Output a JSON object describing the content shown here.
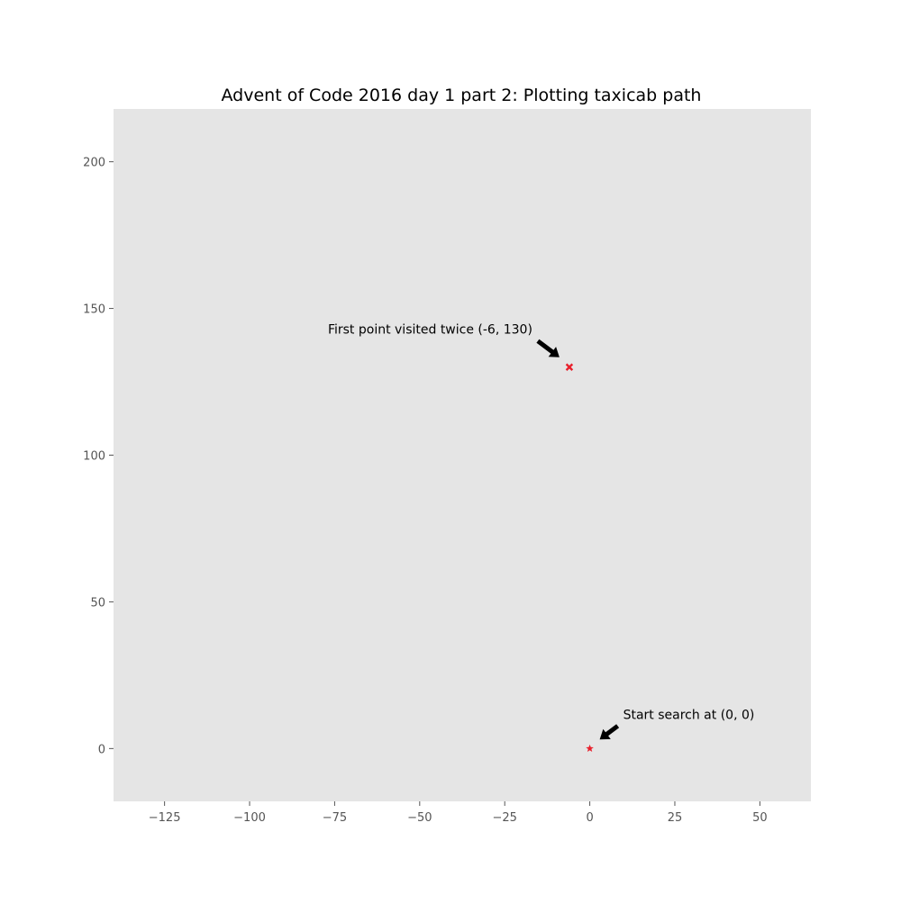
{
  "chart_data": {
    "type": "scatter",
    "title": "Advent of Code 2016 day 1 part 2: Plotting taxicab path",
    "xlabel": "",
    "ylabel": "",
    "xlim": [
      -140,
      65
    ],
    "ylim": [
      -18,
      218
    ],
    "grid": false,
    "x_ticks": [
      -125,
      -100,
      -75,
      -50,
      -25,
      0,
      25,
      50
    ],
    "x_tick_labels": [
      "−125",
      "−100",
      "−75",
      "−50",
      "−25",
      "0",
      "25",
      "50"
    ],
    "y_ticks": [
      0,
      50,
      100,
      150,
      200
    ],
    "y_tick_labels": [
      "0",
      "50",
      "100",
      "150",
      "200"
    ],
    "colors": {
      "plot_background": "#e5e5e5",
      "figure_background": "#ffffff",
      "marker": "#e8202c",
      "tick": "#555555",
      "arrow": "#000000"
    },
    "series": [
      {
        "points": [
          {
            "x": 0,
            "y": 0,
            "marker": "star"
          },
          {
            "x": -6,
            "y": 130,
            "marker": "x-filled"
          }
        ]
      }
    ],
    "annotations": [
      {
        "text": "Start search at (0, 0)",
        "point": {
          "x": 0,
          "y": 0
        },
        "text_anchor": "start"
      },
      {
        "text": "First point visited twice (-6, 130)",
        "point": {
          "x": -6,
          "y": 130
        },
        "text_anchor": "end"
      }
    ]
  }
}
